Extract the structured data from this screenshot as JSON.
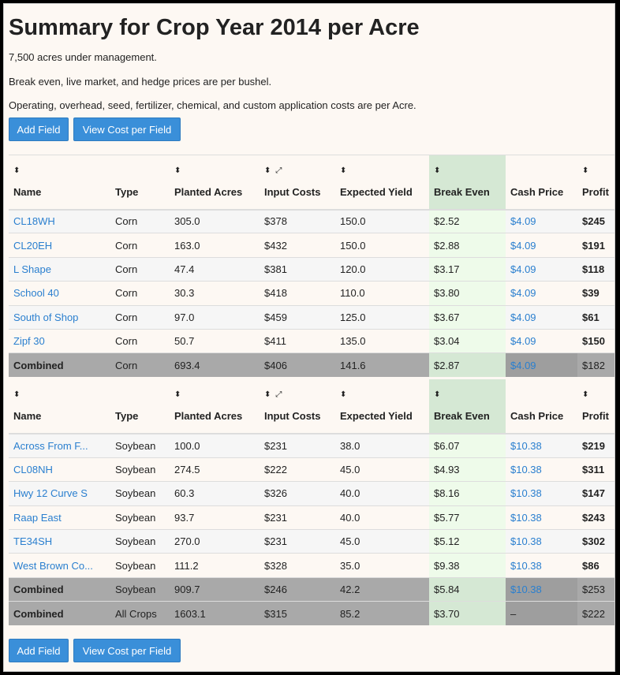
{
  "page": {
    "title": "Summary for Crop Year 2014 per Acre",
    "intro": [
      "7,500 acres under management.",
      "Break even, live market, and hedge prices are per bushel.",
      "Operating, overhead, seed, fertilizer, chemical, and custom application costs are per Acre."
    ]
  },
  "buttons": {
    "add_field": "Add Field",
    "view_cost": "View Cost per Field"
  },
  "icons": {
    "sort": "⬍",
    "expand": "⤢"
  },
  "columns": [
    "Name",
    "Type",
    "Planted Acres",
    "Input Costs",
    "Expected Yield",
    "Break Even",
    "Cash Price",
    "Profit"
  ],
  "corn": {
    "rows": [
      {
        "name": "CL18WH",
        "type": "Corn",
        "acres": "305.0",
        "input": "$378",
        "yield": "150.0",
        "breakeven": "$2.52",
        "cash": "$4.09",
        "profit": "$245"
      },
      {
        "name": "CL20EH",
        "type": "Corn",
        "acres": "163.0",
        "input": "$432",
        "yield": "150.0",
        "breakeven": "$2.88",
        "cash": "$4.09",
        "profit": "$191"
      },
      {
        "name": "L Shape",
        "type": "Corn",
        "acres": "47.4",
        "input": "$381",
        "yield": "120.0",
        "breakeven": "$3.17",
        "cash": "$4.09",
        "profit": "$118"
      },
      {
        "name": "School 40",
        "type": "Corn",
        "acres": "30.3",
        "input": "$418",
        "yield": "110.0",
        "breakeven": "$3.80",
        "cash": "$4.09",
        "profit": "$39"
      },
      {
        "name": "South of Shop",
        "type": "Corn",
        "acres": "97.0",
        "input": "$459",
        "yield": "125.0",
        "breakeven": "$3.67",
        "cash": "$4.09",
        "profit": "$61"
      },
      {
        "name": "Zipf 30",
        "type": "Corn",
        "acres": "50.7",
        "input": "$411",
        "yield": "135.0",
        "breakeven": "$3.04",
        "cash": "$4.09",
        "profit": "$150"
      }
    ],
    "combined": {
      "name": "Combined",
      "type": "Corn",
      "acres": "693.4",
      "input": "$406",
      "yield": "141.6",
      "breakeven": "$2.87",
      "cash": "$4.09",
      "profit": "$182"
    }
  },
  "soybean": {
    "rows": [
      {
        "name": "Across From F...",
        "type": "Soybean",
        "acres": "100.0",
        "input": "$231",
        "yield": "38.0",
        "breakeven": "$6.07",
        "cash": "$10.38",
        "profit": "$219"
      },
      {
        "name": "CL08NH",
        "type": "Soybean",
        "acres": "274.5",
        "input": "$222",
        "yield": "45.0",
        "breakeven": "$4.93",
        "cash": "$10.38",
        "profit": "$311"
      },
      {
        "name": "Hwy 12 Curve S",
        "type": "Soybean",
        "acres": "60.3",
        "input": "$326",
        "yield": "40.0",
        "breakeven": "$8.16",
        "cash": "$10.38",
        "profit": "$147"
      },
      {
        "name": "Raap East",
        "type": "Soybean",
        "acres": "93.7",
        "input": "$231",
        "yield": "40.0",
        "breakeven": "$5.77",
        "cash": "$10.38",
        "profit": "$243"
      },
      {
        "name": "TE34SH",
        "type": "Soybean",
        "acres": "270.0",
        "input": "$231",
        "yield": "45.0",
        "breakeven": "$5.12",
        "cash": "$10.38",
        "profit": "$302"
      },
      {
        "name": "West Brown Co...",
        "type": "Soybean",
        "acres": "111.2",
        "input": "$328",
        "yield": "35.0",
        "breakeven": "$9.38",
        "cash": "$10.38",
        "profit": "$86"
      }
    ],
    "combined": {
      "name": "Combined",
      "type": "Soybean",
      "acres": "909.7",
      "input": "$246",
      "yield": "42.2",
      "breakeven": "$5.84",
      "cash": "$10.38",
      "profit": "$253"
    },
    "all_crops": {
      "name": "Combined",
      "type": "All Crops",
      "acres": "1603.1",
      "input": "$315",
      "yield": "85.2",
      "breakeven": "$3.70",
      "cash": "–",
      "profit": "$222"
    }
  },
  "colors": {
    "accent": "#3a8fd9",
    "link": "#2a7fcf",
    "breakeven_header": "#d5e8d4",
    "breakeven_cell": "#eefbea",
    "combined_row": "#a9a9a9"
  }
}
